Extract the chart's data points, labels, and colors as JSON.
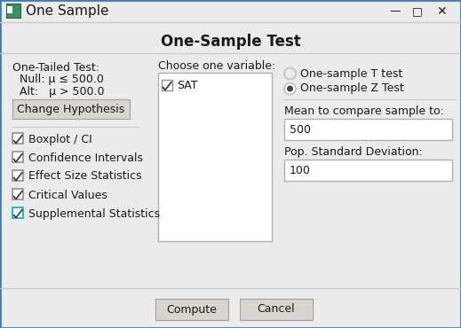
{
  "title_bar": "One Sample",
  "dialog_title": "One-Sample Test",
  "bg_color": "#ebebeb",
  "white": "#ffffff",
  "left_section": {
    "test_type": "One-Tailed Test:",
    "null": "Null: μ ≤ 500.0",
    "alt": "Alt:   μ > 500.0",
    "button": "Change Hypothesis",
    "checkboxes": [
      {
        "label": "Boxplot / CI",
        "checked": true,
        "blue": false
      },
      {
        "label": "Confidence Intervals",
        "checked": true,
        "blue": false
      },
      {
        "label": "Effect Size Statistics",
        "checked": true,
        "blue": false
      },
      {
        "label": "Critical Values",
        "checked": true,
        "blue": false
      },
      {
        "label": "Supplemental Statistics",
        "checked": true,
        "blue": true
      }
    ]
  },
  "middle_section": {
    "label": "Choose one variable:",
    "list_items": [
      "SAT"
    ],
    "list_checked": [
      true
    ]
  },
  "right_section": {
    "radio_options": [
      "One-sample T test",
      "One-sample Z Test"
    ],
    "radio_selected": 1,
    "mean_label": "Mean to compare sample to:",
    "mean_value": "500",
    "std_label": "Pop. Standard Deviation:",
    "std_value": "100"
  },
  "buttons": [
    "Compute",
    "Cancel"
  ],
  "window_border": "#3a7ebf",
  "separator_color": "#c8c8c8",
  "btn_face": "#d8d5ce",
  "btn_border": "#a0a0a0",
  "input_border": "#b0b0b0",
  "check_border": "#909090",
  "check_blue_border": "#00aaee",
  "radio_border": "#c0c0c0",
  "radio_fill": "#444444",
  "text_color": "#1a1a1a",
  "title_fontsize": 11,
  "dialog_title_fontsize": 12,
  "label_fontsize": 9,
  "input_fontsize": 9
}
